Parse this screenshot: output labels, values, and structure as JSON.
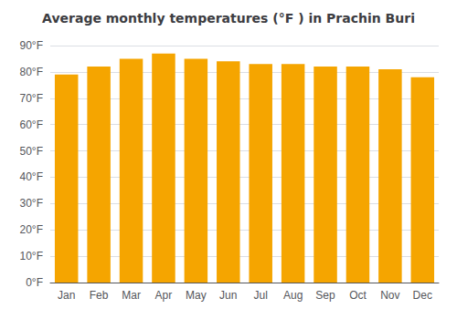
{
  "chart_data": {
    "type": "bar",
    "title": "Average monthly temperatures (°F ) in Prachin Buri",
    "categories": [
      "Jan",
      "Feb",
      "Mar",
      "Apr",
      "May",
      "Jun",
      "Jul",
      "Aug",
      "Sep",
      "Oct",
      "Nov",
      "Dec"
    ],
    "values": [
      79,
      82,
      85,
      87,
      85,
      84,
      83,
      83,
      82,
      82,
      81,
      78
    ],
    "color": "#F5A500",
    "ylim": [
      0,
      90
    ],
    "yticks": [
      {
        "value": 0,
        "label": "0°F"
      },
      {
        "value": 10,
        "label": "10°F"
      },
      {
        "value": 20,
        "label": "20°F"
      },
      {
        "value": 30,
        "label": "30°F"
      },
      {
        "value": 40,
        "label": "40°F"
      },
      {
        "value": 50,
        "label": "50°F"
      },
      {
        "value": 60,
        "label": "60°F"
      },
      {
        "value": 70,
        "label": "70°F"
      },
      {
        "value": 80,
        "label": "80°F"
      },
      {
        "value": 90,
        "label": "90°F"
      }
    ],
    "grid": true
  }
}
